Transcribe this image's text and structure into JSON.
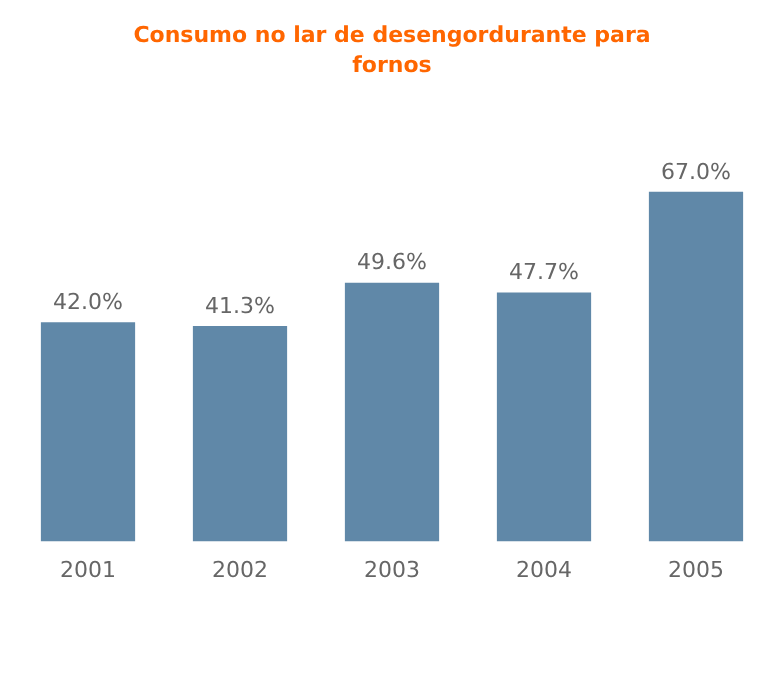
{
  "chart_data": {
    "type": "bar",
    "title": "Consumo no lar de desengordurante para fornos",
    "categories": [
      "2001",
      "2002",
      "2003",
      "2004",
      "2005"
    ],
    "values": [
      42.0,
      41.3,
      49.6,
      47.7,
      67.0
    ],
    "value_labels": [
      "42.0%",
      "41.3%",
      "49.6%",
      "47.7%",
      "67.0%"
    ],
    "color": "#6088a8",
    "grid": false,
    "legend": false
  }
}
